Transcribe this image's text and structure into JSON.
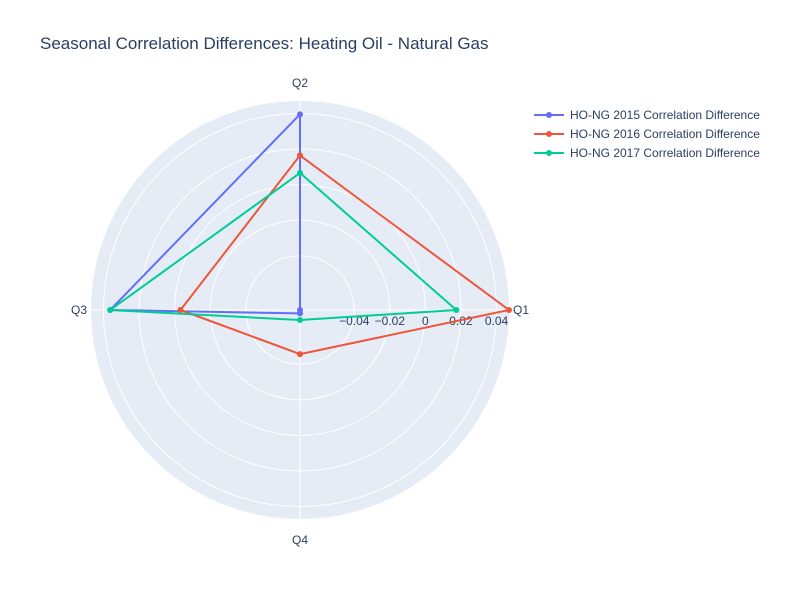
{
  "chart_data": {
    "type": "radar",
    "title": "Seasonal Correlation Differences: Heating Oil - Natural Gas",
    "categories": [
      "Q1",
      "Q2",
      "Q3",
      "Q4"
    ],
    "radial_range": [
      -0.0705,
      0.047
    ],
    "radial_ticks": [
      -0.04,
      -0.02,
      0,
      0.02,
      0.04
    ],
    "radial_tick_labels": [
      "−0.04",
      "−0.02",
      "0",
      "0.02",
      "0.04"
    ],
    "legend_position": "top-right",
    "series": [
      {
        "name": "HO-NG 2015 Correlation Difference",
        "color": "#636efa",
        "values": [
          -0.071,
          0.0395,
          0.0362,
          -0.0686
        ]
      },
      {
        "name": "HO-NG 2016 Correlation Difference",
        "color": "#ef553b",
        "values": [
          0.047,
          0.0164,
          -0.0033,
          -0.0457
        ]
      },
      {
        "name": "HO-NG 2017 Correlation Difference",
        "color": "#00cc96",
        "values": [
          0.0174,
          0.0066,
          0.0362,
          -0.0649
        ]
      }
    ]
  }
}
